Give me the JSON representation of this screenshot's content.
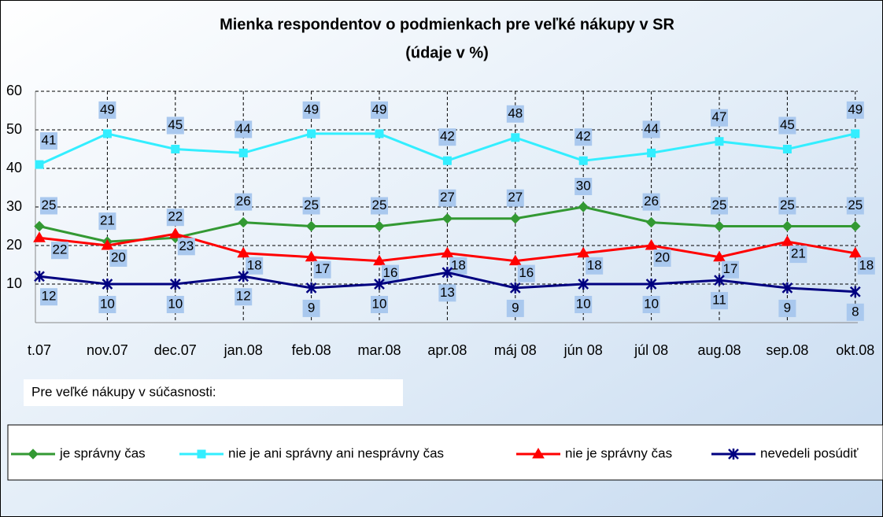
{
  "chart_data": {
    "type": "line",
    "title": "Mienka respondentov o podmienkach pre veľké nákupy v SR",
    "subtitle": "(údaje v %)",
    "note": "Pre veľké nákupy v súčasnosti:",
    "categories": [
      "t.07",
      "nov.07",
      "dec.07",
      "jan.08",
      "feb.08",
      "mar.08",
      "apr.08",
      "máj 08",
      "jún 08",
      "júl 08",
      "aug.08",
      "sep.08",
      "okt.08"
    ],
    "series": [
      {
        "name": "je správny čas",
        "color": "#339933",
        "marker": "diamond",
        "values": [
          25,
          21,
          22,
          26,
          25,
          25,
          27,
          27,
          30,
          26,
          25,
          25,
          25
        ]
      },
      {
        "name": "nie je ani správny ani nesprávny čas",
        "color": "#33eeff",
        "marker": "square",
        "values": [
          41,
          49,
          45,
          44,
          49,
          49,
          42,
          48,
          42,
          44,
          47,
          45,
          49
        ]
      },
      {
        "name": "nie je správny čas",
        "color": "#ff0000",
        "marker": "triangle",
        "values": [
          22,
          20,
          23,
          18,
          17,
          16,
          18,
          16,
          18,
          20,
          17,
          21,
          18
        ]
      },
      {
        "name": "nevedeli posúdiť",
        "color": "#000080",
        "marker": "star",
        "values": [
          12,
          10,
          10,
          12,
          9,
          10,
          13,
          9,
          10,
          10,
          11,
          9,
          8
        ]
      }
    ],
    "ylim": [
      0,
      60
    ],
    "yticks": [
      10,
      20,
      30,
      40,
      50,
      60
    ],
    "grid": true,
    "legend": "bottom"
  }
}
